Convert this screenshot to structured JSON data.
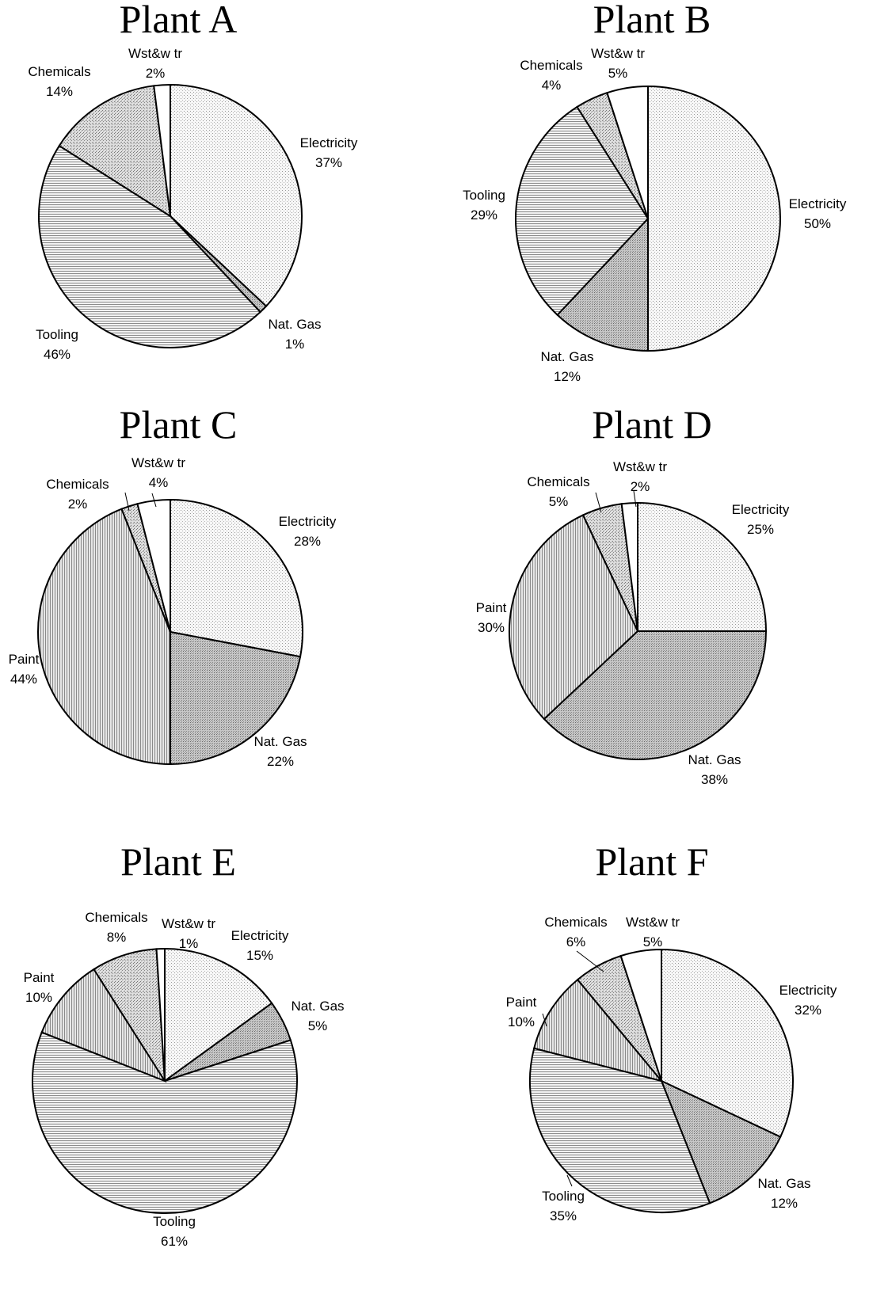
{
  "chart_data": [
    {
      "type": "pie",
      "title": "Plant A",
      "slices": [
        {
          "name": "Electricity",
          "value": 37,
          "label": "37%"
        },
        {
          "name": "Nat. Gas",
          "value": 1,
          "label": "1%"
        },
        {
          "name": "Tooling",
          "value": 46,
          "label": "46%"
        },
        {
          "name": "Chemicals",
          "value": 14,
          "label": "14%"
        },
        {
          "name": "Wst&w tr",
          "value": 2,
          "label": "2%"
        }
      ]
    },
    {
      "type": "pie",
      "title": "Plant B",
      "slices": [
        {
          "name": "Electricity",
          "value": 50,
          "label": "50%"
        },
        {
          "name": "Nat. Gas",
          "value": 12,
          "label": "12%"
        },
        {
          "name": "Tooling",
          "value": 29,
          "label": "29%"
        },
        {
          "name": "Chemicals",
          "value": 4,
          "label": "4%"
        },
        {
          "name": "Wst&w tr",
          "value": 5,
          "label": "5%"
        }
      ]
    },
    {
      "type": "pie",
      "title": "Plant C",
      "slices": [
        {
          "name": "Electricity",
          "value": 28,
          "label": "28%"
        },
        {
          "name": "Nat. Gas",
          "value": 22,
          "label": "22%"
        },
        {
          "name": "Paint",
          "value": 44,
          "label": "44%"
        },
        {
          "name": "Chemicals",
          "value": 2,
          "label": "2%"
        },
        {
          "name": "Wst&w tr",
          "value": 4,
          "label": "4%"
        }
      ]
    },
    {
      "type": "pie",
      "title": "Plant D",
      "slices": [
        {
          "name": "Electricity",
          "value": 25,
          "label": "25%"
        },
        {
          "name": "Nat. Gas",
          "value": 38,
          "label": "38%"
        },
        {
          "name": "Paint",
          "value": 30,
          "label": "30%"
        },
        {
          "name": "Chemicals",
          "value": 5,
          "label": "5%"
        },
        {
          "name": "Wst&w tr",
          "value": 2,
          "label": "2%"
        }
      ]
    },
    {
      "type": "pie",
      "title": "Plant E",
      "slices": [
        {
          "name": "Electricity",
          "value": 15,
          "label": "15%"
        },
        {
          "name": "Nat. Gas",
          "value": 5,
          "label": "5%"
        },
        {
          "name": "Tooling",
          "value": 61,
          "label": "61%"
        },
        {
          "name": "Paint",
          "value": 10,
          "label": "10%"
        },
        {
          "name": "Chemicals",
          "value": 8,
          "label": "8%"
        },
        {
          "name": "Wst&w tr",
          "value": 1,
          "label": "1%"
        }
      ]
    },
    {
      "type": "pie",
      "title": "Plant F",
      "slices": [
        {
          "name": "Electricity",
          "value": 32,
          "label": "32%"
        },
        {
          "name": "Nat. Gas",
          "value": 12,
          "label": "12%"
        },
        {
          "name": "Tooling",
          "value": 35,
          "label": "35%"
        },
        {
          "name": "Paint",
          "value": 10,
          "label": "10%"
        },
        {
          "name": "Chemicals",
          "value": 6,
          "label": "6%"
        },
        {
          "name": "Wst&w tr",
          "value": 5,
          "label": "5%"
        }
      ]
    }
  ]
}
